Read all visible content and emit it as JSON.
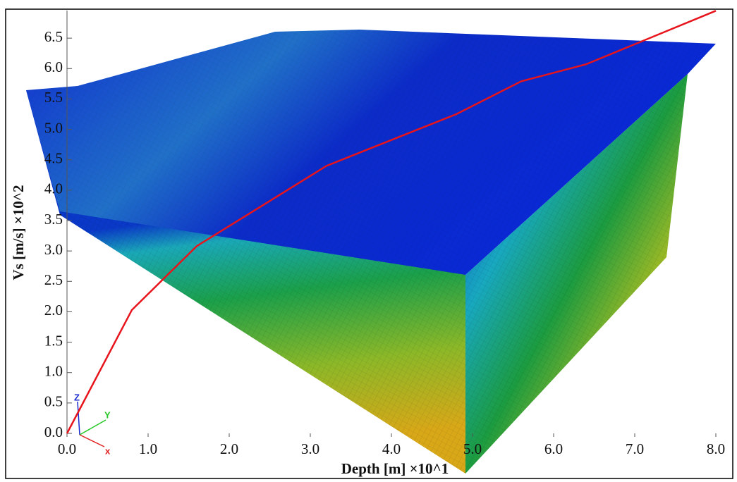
{
  "chart_data": {
    "type": "line",
    "x_label": "Depth [m] ×10^1",
    "y_label": "Vs [m/s] ×10^2",
    "x": [
      0,
      0.8,
      1.6,
      3.2,
      4.8,
      5.6,
      6.4,
      8.0
    ],
    "values": [
      0,
      2.03,
      3.08,
      4.4,
      5.25,
      5.79,
      6.07,
      6.95
    ],
    "color": "#e8141c",
    "xlim": [
      0,
      8.0
    ],
    "ylim": [
      0,
      7.0
    ],
    "xticks": [
      {
        "value": 0,
        "label": "0.0"
      },
      {
        "value": 1,
        "label": "1.0"
      },
      {
        "value": 2,
        "label": "2.0"
      },
      {
        "value": 3,
        "label": "3.0"
      },
      {
        "value": 4,
        "label": "4.0"
      },
      {
        "value": 5,
        "label": "5.0"
      },
      {
        "value": 6,
        "label": "6.0"
      },
      {
        "value": 7,
        "label": "7.0"
      },
      {
        "value": 8,
        "label": "8.0"
      }
    ],
    "yticks": [
      {
        "value": 0,
        "label": "0.0"
      },
      0.5,
      {
        "value": 1,
        "label": "1.0"
      },
      1.5,
      {
        "value": 2,
        "label": "2.0"
      },
      2.5,
      {
        "value": 3,
        "label": "3.0"
      },
      3.5,
      {
        "value": 4,
        "label": "4.0"
      },
      4.5,
      {
        "value": 5,
        "label": "5.0"
      },
      5.5,
      {
        "value": 6,
        "label": "6.0"
      },
      6.5
    ],
    "triad": {
      "z": "Z",
      "y": "Y",
      "x": "x"
    }
  }
}
